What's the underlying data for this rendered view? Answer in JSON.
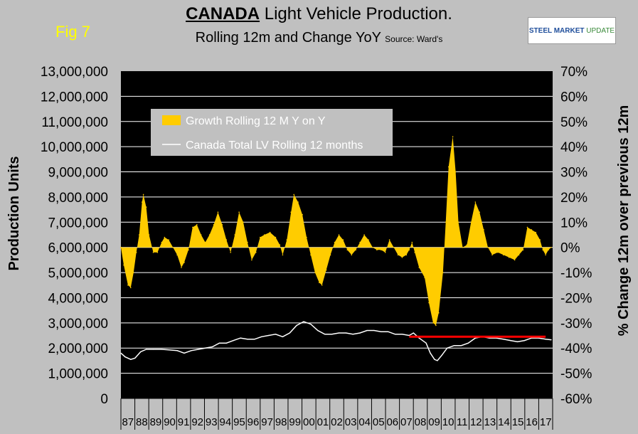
{
  "header": {
    "fig_label": "Fig 7",
    "title_strong": "CANADA",
    "title_rest": " Light Vehicle Production.",
    "subtitle": "Rolling 12m and Change YoY",
    "source": "Source: Ward's",
    "logo_text_bold": "STEEL MARKET",
    "logo_text_rest": "UPDATE"
  },
  "chart_data": {
    "type": "area",
    "ylabel": "Production Units",
    "y2label": "% Change 12m over previous 12m",
    "ylim": [
      0,
      13000000
    ],
    "y2lim": [
      -60,
      70
    ],
    "y_ticks": [
      "13,000,000",
      "12,000,000",
      "11,000,000",
      "10,000,000",
      "9,000,000",
      "8,000,000",
      "7,000,000",
      "6,000,000",
      "5,000,000",
      "4,000,000",
      "3,000,000",
      "2,000,000",
      "1,000,000",
      "0"
    ],
    "y2_ticks": [
      "70%",
      "60%",
      "50%",
      "40%",
      "30%",
      "20%",
      "10%",
      "0%",
      "-10%",
      "-20%",
      "-30%",
      "-40%",
      "-50%",
      "-60%"
    ],
    "x_ticks": [
      "87",
      "88",
      "89",
      "90",
      "91",
      "92",
      "93",
      "94",
      "95",
      "96",
      "97",
      "98",
      "99",
      "00",
      "01",
      "02",
      "03",
      "04",
      "05",
      "06",
      "07",
      "08",
      "09",
      "10",
      "11",
      "12",
      "13",
      "14",
      "15",
      "16",
      "17"
    ],
    "legend": [
      "Growth Rolling 12 M Y on Y",
      "Canada Total LV Rolling 12 months"
    ],
    "colors": {
      "growth": "#ffcc00",
      "total": "#ffffff",
      "reference": "#ff0000",
      "plot_bg": "#000000"
    },
    "x_start": 1986.9,
    "x_end": 2017.6,
    "growth_series": {
      "name": "Growth Rolling 12 M Y on Y",
      "points": [
        [
          1986.9,
          0
        ],
        [
          1987.1,
          -7
        ],
        [
          1987.4,
          -15
        ],
        [
          1987.6,
          -16
        ],
        [
          1987.8,
          -10
        ],
        [
          1988.0,
          -2
        ],
        [
          1988.2,
          5
        ],
        [
          1988.4,
          18
        ],
        [
          1988.5,
          21
        ],
        [
          1988.7,
          16
        ],
        [
          1988.9,
          5
        ],
        [
          1989.2,
          -2
        ],
        [
          1989.5,
          -2
        ],
        [
          1989.8,
          2
        ],
        [
          1990.0,
          4
        ],
        [
          1990.3,
          3
        ],
        [
          1990.6,
          0
        ],
        [
          1990.9,
          -3
        ],
        [
          1991.2,
          -8
        ],
        [
          1991.4,
          -6
        ],
        [
          1991.7,
          -1
        ],
        [
          1992.0,
          8
        ],
        [
          1992.3,
          9
        ],
        [
          1992.6,
          5
        ],
        [
          1992.9,
          2
        ],
        [
          1993.2,
          5
        ],
        [
          1993.5,
          9
        ],
        [
          1993.8,
          14
        ],
        [
          1994.1,
          9
        ],
        [
          1994.4,
          3
        ],
        [
          1994.7,
          -2
        ],
        [
          1995.0,
          5
        ],
        [
          1995.3,
          14
        ],
        [
          1995.6,
          10
        ],
        [
          1995.9,
          2
        ],
        [
          1996.2,
          -5
        ],
        [
          1996.5,
          -2
        ],
        [
          1996.8,
          4
        ],
        [
          1997.1,
          5
        ],
        [
          1997.5,
          6
        ],
        [
          1997.9,
          4
        ],
        [
          1998.2,
          1
        ],
        [
          1998.4,
          -3
        ],
        [
          1998.7,
          3
        ],
        [
          1999.0,
          14
        ],
        [
          1999.2,
          21
        ],
        [
          1999.5,
          18
        ],
        [
          1999.8,
          13
        ],
        [
          2000.1,
          4
        ],
        [
          2000.4,
          -3
        ],
        [
          2000.7,
          -10
        ],
        [
          2001.0,
          -14
        ],
        [
          2001.2,
          -15
        ],
        [
          2001.5,
          -9
        ],
        [
          2001.8,
          -3
        ],
        [
          2002.1,
          2
        ],
        [
          2002.4,
          5
        ],
        [
          2002.7,
          3
        ],
        [
          2003.0,
          -1
        ],
        [
          2003.3,
          -3
        ],
        [
          2003.6,
          -1
        ],
        [
          2003.9,
          2
        ],
        [
          2004.2,
          5
        ],
        [
          2004.5,
          3
        ],
        [
          2004.8,
          0
        ],
        [
          2005.1,
          -1
        ],
        [
          2005.4,
          -1
        ],
        [
          2005.7,
          -2
        ],
        [
          2006.0,
          3
        ],
        [
          2006.3,
          0
        ],
        [
          2006.6,
          -3
        ],
        [
          2006.9,
          -4
        ],
        [
          2007.2,
          -3
        ],
        [
          2007.4,
          -1
        ],
        [
          2007.6,
          2
        ],
        [
          2007.8,
          -2
        ],
        [
          2008.1,
          -8
        ],
        [
          2008.5,
          -12
        ],
        [
          2008.8,
          -22
        ],
        [
          2009.1,
          -30
        ],
        [
          2009.3,
          -31
        ],
        [
          2009.5,
          -26
        ],
        [
          2009.8,
          -10
        ],
        [
          2010.0,
          10
        ],
        [
          2010.2,
          32
        ],
        [
          2010.5,
          44
        ],
        [
          2010.7,
          30
        ],
        [
          2010.9,
          10
        ],
        [
          2011.2,
          0
        ],
        [
          2011.5,
          1
        ],
        [
          2011.8,
          10
        ],
        [
          2012.1,
          18
        ],
        [
          2012.4,
          14
        ],
        [
          2012.7,
          7
        ],
        [
          2013.0,
          0
        ],
        [
          2013.3,
          -3
        ],
        [
          2013.7,
          -2
        ],
        [
          2014.1,
          -3
        ],
        [
          2014.5,
          -4
        ],
        [
          2014.9,
          -5
        ],
        [
          2015.2,
          -3
        ],
        [
          2015.5,
          -1
        ],
        [
          2015.8,
          8
        ],
        [
          2016.1,
          7
        ],
        [
          2016.4,
          6
        ],
        [
          2016.7,
          3
        ],
        [
          2016.9,
          -1
        ],
        [
          2017.1,
          -3
        ],
        [
          2017.3,
          -1
        ],
        [
          2017.5,
          0
        ]
      ]
    },
    "total_series": {
      "name": "Canada Total LV Rolling 12 months",
      "points": [
        [
          1986.9,
          1800000
        ],
        [
          1987.2,
          1650000
        ],
        [
          1987.6,
          1550000
        ],
        [
          1987.9,
          1600000
        ],
        [
          1988.3,
          1850000
        ],
        [
          1988.7,
          1950000
        ],
        [
          1989.2,
          1950000
        ],
        [
          1989.8,
          1950000
        ],
        [
          1990.3,
          1930000
        ],
        [
          1990.9,
          1900000
        ],
        [
          1991.4,
          1800000
        ],
        [
          1991.9,
          1900000
        ],
        [
          1992.4,
          1950000
        ],
        [
          1992.9,
          2000000
        ],
        [
          1993.4,
          2050000
        ],
        [
          1993.9,
          2200000
        ],
        [
          1994.4,
          2200000
        ],
        [
          1994.9,
          2300000
        ],
        [
          1995.4,
          2400000
        ],
        [
          1995.9,
          2350000
        ],
        [
          1996.4,
          2350000
        ],
        [
          1996.9,
          2450000
        ],
        [
          1997.4,
          2500000
        ],
        [
          1997.9,
          2550000
        ],
        [
          1998.4,
          2450000
        ],
        [
          1998.9,
          2600000
        ],
        [
          1999.4,
          2900000
        ],
        [
          1999.9,
          3050000
        ],
        [
          2000.4,
          2950000
        ],
        [
          2000.9,
          2700000
        ],
        [
          2001.4,
          2550000
        ],
        [
          2001.9,
          2550000
        ],
        [
          2002.4,
          2600000
        ],
        [
          2002.9,
          2600000
        ],
        [
          2003.4,
          2550000
        ],
        [
          2003.9,
          2600000
        ],
        [
          2004.4,
          2700000
        ],
        [
          2004.9,
          2700000
        ],
        [
          2005.4,
          2650000
        ],
        [
          2005.9,
          2650000
        ],
        [
          2006.4,
          2550000
        ],
        [
          2006.9,
          2550000
        ],
        [
          2007.4,
          2500000
        ],
        [
          2007.7,
          2600000
        ],
        [
          2008.1,
          2400000
        ],
        [
          2008.6,
          2200000
        ],
        [
          2008.9,
          1800000
        ],
        [
          2009.2,
          1550000
        ],
        [
          2009.4,
          1500000
        ],
        [
          2009.7,
          1700000
        ],
        [
          2010.1,
          2000000
        ],
        [
          2010.6,
          2100000
        ],
        [
          2011.1,
          2100000
        ],
        [
          2011.6,
          2200000
        ],
        [
          2012.1,
          2400000
        ],
        [
          2012.6,
          2450000
        ],
        [
          2013.1,
          2400000
        ],
        [
          2013.6,
          2400000
        ],
        [
          2014.1,
          2350000
        ],
        [
          2014.6,
          2300000
        ],
        [
          2015.1,
          2250000
        ],
        [
          2015.6,
          2300000
        ],
        [
          2016.1,
          2400000
        ],
        [
          2016.6,
          2400000
        ],
        [
          2017.1,
          2350000
        ],
        [
          2017.5,
          2330000
        ]
      ]
    },
    "reference_line": {
      "y": 2450000,
      "x_from": 2007.4,
      "x_to": 2017.1
    }
  }
}
